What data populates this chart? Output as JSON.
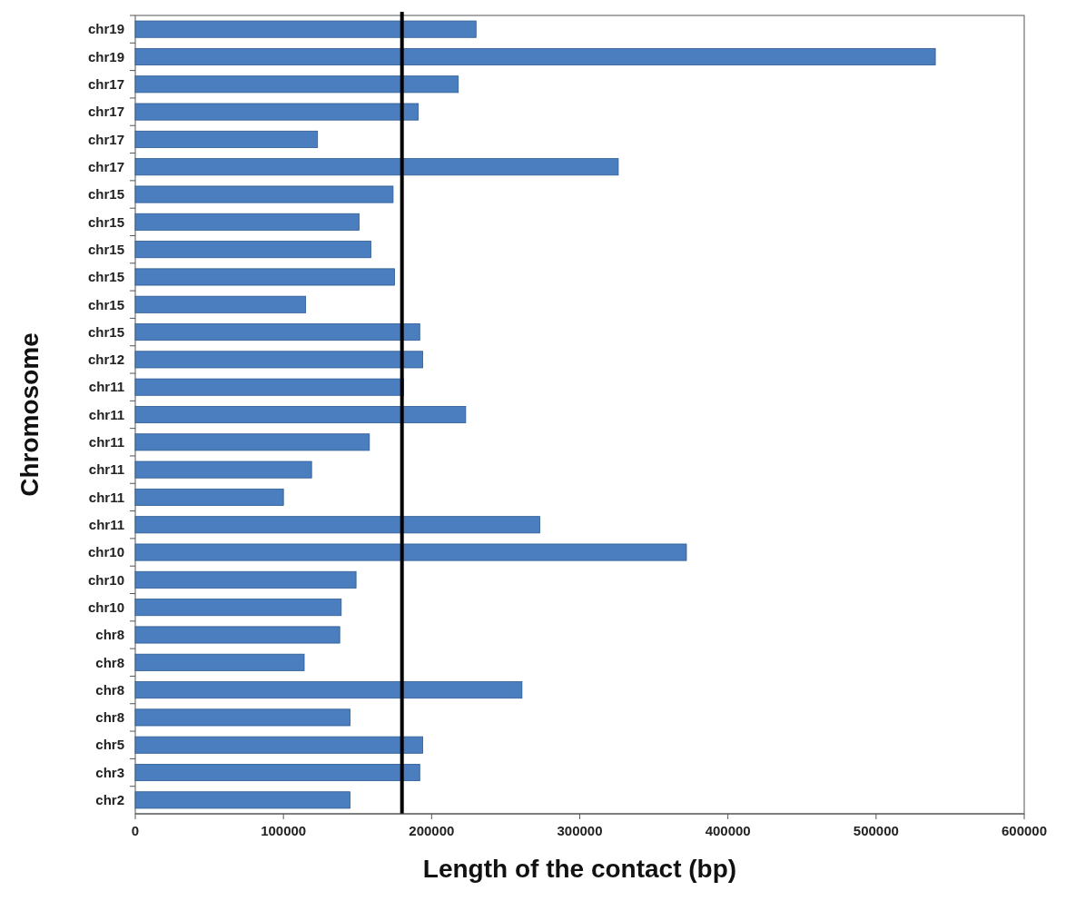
{
  "chart_data": {
    "type": "bar",
    "orientation": "horizontal",
    "xlabel": "Length of the contact (bp)",
    "ylabel": "Chromosome",
    "categories": [
      "chr19",
      "chr19",
      "chr17",
      "chr17",
      "chr17",
      "chr17",
      "chr15",
      "chr15",
      "chr15",
      "chr15",
      "chr15",
      "chr15",
      "chr12",
      "chr11",
      "chr11",
      "chr11",
      "chr11",
      "chr11",
      "chr11",
      "chr10",
      "chr10",
      "chr10",
      "chr8",
      "chr8",
      "chr8",
      "chr8",
      "chr5",
      "chr3",
      "chr2"
    ],
    "values": [
      230000,
      540000,
      218000,
      191000,
      123000,
      326000,
      174000,
      151000,
      159000,
      175000,
      115000,
      192000,
      194000,
      181000,
      223000,
      158000,
      119000,
      100000,
      273000,
      372000,
      149000,
      139000,
      138000,
      114000,
      261000,
      145000,
      194000,
      192000,
      145000
    ],
    "color": "#4a7ebf",
    "xlim": [
      0,
      600000
    ],
    "xticks": [
      0,
      100000,
      200000,
      300000,
      400000,
      500000,
      600000
    ],
    "grid": false,
    "ref_lines": [
      {
        "axis": "x",
        "value": 180000,
        "color": "#000000",
        "line_style": "solid"
      }
    ]
  }
}
